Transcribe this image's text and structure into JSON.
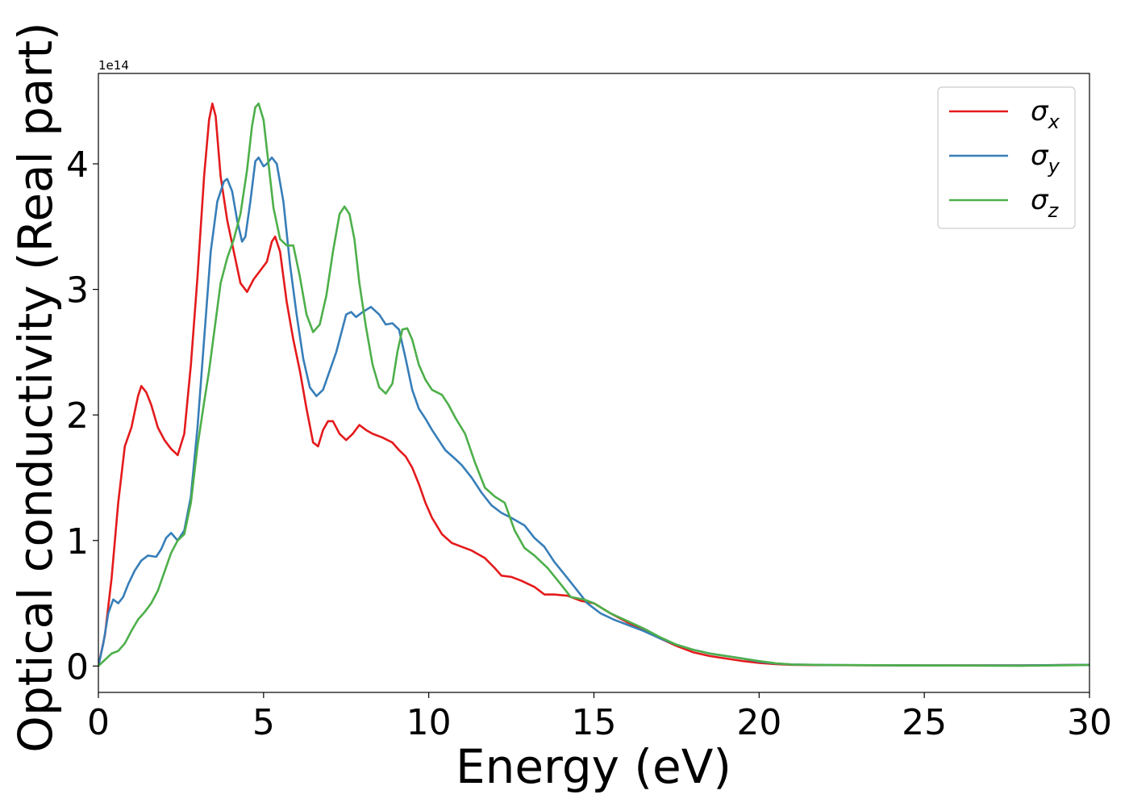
{
  "chart_data": {
    "type": "line",
    "xlabel": "Energy (eV)",
    "ylabel": "Optical conductivity (Real part)",
    "y_offset_label": "1e14",
    "xlim": [
      0,
      30
    ],
    "ylim": [
      -0.21,
      4.72
    ],
    "x_ticks": [
      0,
      5,
      10,
      15,
      20,
      25,
      30
    ],
    "x_tick_labels": [
      "0",
      "5",
      "10",
      "15",
      "20",
      "25",
      "30"
    ],
    "y_ticks": [
      0,
      1,
      2,
      3,
      4
    ],
    "y_tick_labels": [
      "0",
      "1",
      "2",
      "3",
      "4"
    ],
    "grid": false,
    "legend_position": "top-right",
    "series": [
      {
        "name": "σx",
        "symbol": "σ",
        "subscript": "x",
        "color": "#e41a1c",
        "points": [
          [
            0,
            0
          ],
          [
            0.2,
            0.25
          ],
          [
            0.4,
            0.7
          ],
          [
            0.6,
            1.3
          ],
          [
            0.8,
            1.75
          ],
          [
            1.0,
            1.9
          ],
          [
            1.2,
            2.15
          ],
          [
            1.3,
            2.23
          ],
          [
            1.45,
            2.18
          ],
          [
            1.6,
            2.08
          ],
          [
            1.8,
            1.9
          ],
          [
            2.0,
            1.8
          ],
          [
            2.2,
            1.73
          ],
          [
            2.4,
            1.68
          ],
          [
            2.6,
            1.85
          ],
          [
            2.8,
            2.4
          ],
          [
            3.0,
            3.1
          ],
          [
            3.2,
            3.9
          ],
          [
            3.35,
            4.35
          ],
          [
            3.45,
            4.48
          ],
          [
            3.55,
            4.38
          ],
          [
            3.7,
            3.9
          ],
          [
            3.9,
            3.55
          ],
          [
            4.1,
            3.3
          ],
          [
            4.3,
            3.05
          ],
          [
            4.5,
            2.98
          ],
          [
            4.7,
            3.08
          ],
          [
            4.9,
            3.15
          ],
          [
            5.1,
            3.22
          ],
          [
            5.25,
            3.38
          ],
          [
            5.35,
            3.42
          ],
          [
            5.5,
            3.3
          ],
          [
            5.7,
            2.9
          ],
          [
            5.9,
            2.6
          ],
          [
            6.1,
            2.35
          ],
          [
            6.3,
            2.05
          ],
          [
            6.5,
            1.78
          ],
          [
            6.65,
            1.75
          ],
          [
            6.8,
            1.88
          ],
          [
            6.95,
            1.95
          ],
          [
            7.1,
            1.95
          ],
          [
            7.3,
            1.85
          ],
          [
            7.5,
            1.8
          ],
          [
            7.7,
            1.85
          ],
          [
            7.9,
            1.92
          ],
          [
            8.1,
            1.88
          ],
          [
            8.3,
            1.85
          ],
          [
            8.6,
            1.82
          ],
          [
            8.9,
            1.78
          ],
          [
            9.1,
            1.72
          ],
          [
            9.3,
            1.67
          ],
          [
            9.5,
            1.58
          ],
          [
            9.7,
            1.45
          ],
          [
            9.9,
            1.3
          ],
          [
            10.1,
            1.18
          ],
          [
            10.4,
            1.05
          ],
          [
            10.7,
            0.98
          ],
          [
            11.0,
            0.95
          ],
          [
            11.3,
            0.92
          ],
          [
            11.7,
            0.86
          ],
          [
            12.0,
            0.78
          ],
          [
            12.2,
            0.72
          ],
          [
            12.5,
            0.71
          ],
          [
            12.8,
            0.68
          ],
          [
            13.2,
            0.63
          ],
          [
            13.5,
            0.57
          ],
          [
            13.8,
            0.57
          ],
          [
            14.2,
            0.56
          ],
          [
            14.6,
            0.52
          ],
          [
            15.0,
            0.5
          ],
          [
            15.5,
            0.42
          ],
          [
            16.0,
            0.35
          ],
          [
            16.5,
            0.29
          ],
          [
            17.0,
            0.22
          ],
          [
            17.5,
            0.16
          ],
          [
            18.0,
            0.11
          ],
          [
            18.5,
            0.08
          ],
          [
            19.0,
            0.06
          ],
          [
            19.5,
            0.04
          ],
          [
            20.0,
            0.025
          ],
          [
            20.5,
            0.015
          ],
          [
            21,
            0.01
          ],
          [
            22,
            0.007
          ],
          [
            25,
            0.005
          ],
          [
            28,
            0.005
          ],
          [
            30,
            0.01
          ]
        ]
      },
      {
        "name": "σy",
        "symbol": "σ",
        "subscript": "y",
        "color": "#377eb8",
        "points": [
          [
            0,
            0
          ],
          [
            0.15,
            0.18
          ],
          [
            0.3,
            0.42
          ],
          [
            0.45,
            0.53
          ],
          [
            0.6,
            0.5
          ],
          [
            0.75,
            0.55
          ],
          [
            0.9,
            0.65
          ],
          [
            1.1,
            0.76
          ],
          [
            1.3,
            0.84
          ],
          [
            1.5,
            0.88
          ],
          [
            1.75,
            0.87
          ],
          [
            1.9,
            0.93
          ],
          [
            2.05,
            1.02
          ],
          [
            2.2,
            1.06
          ],
          [
            2.4,
            1.0
          ],
          [
            2.6,
            1.08
          ],
          [
            2.8,
            1.35
          ],
          [
            3.0,
            1.9
          ],
          [
            3.2,
            2.6
          ],
          [
            3.4,
            3.3
          ],
          [
            3.6,
            3.7
          ],
          [
            3.8,
            3.86
          ],
          [
            3.9,
            3.88
          ],
          [
            4.05,
            3.78
          ],
          [
            4.2,
            3.55
          ],
          [
            4.35,
            3.38
          ],
          [
            4.45,
            3.42
          ],
          [
            4.6,
            3.7
          ],
          [
            4.75,
            4.02
          ],
          [
            4.85,
            4.05
          ],
          [
            5.0,
            3.98
          ],
          [
            5.1,
            4.0
          ],
          [
            5.25,
            4.05
          ],
          [
            5.4,
            4.0
          ],
          [
            5.6,
            3.7
          ],
          [
            5.8,
            3.2
          ],
          [
            6.0,
            2.8
          ],
          [
            6.2,
            2.45
          ],
          [
            6.4,
            2.22
          ],
          [
            6.6,
            2.15
          ],
          [
            6.8,
            2.2
          ],
          [
            7.0,
            2.35
          ],
          [
            7.2,
            2.5
          ],
          [
            7.35,
            2.65
          ],
          [
            7.5,
            2.8
          ],
          [
            7.65,
            2.82
          ],
          [
            7.8,
            2.78
          ],
          [
            8.0,
            2.82
          ],
          [
            8.25,
            2.86
          ],
          [
            8.5,
            2.8
          ],
          [
            8.7,
            2.72
          ],
          [
            8.9,
            2.73
          ],
          [
            9.1,
            2.68
          ],
          [
            9.3,
            2.45
          ],
          [
            9.5,
            2.2
          ],
          [
            9.7,
            2.05
          ],
          [
            9.9,
            1.97
          ],
          [
            10.1,
            1.88
          ],
          [
            10.3,
            1.8
          ],
          [
            10.5,
            1.72
          ],
          [
            10.8,
            1.65
          ],
          [
            11.0,
            1.6
          ],
          [
            11.3,
            1.5
          ],
          [
            11.6,
            1.38
          ],
          [
            11.9,
            1.28
          ],
          [
            12.2,
            1.22
          ],
          [
            12.5,
            1.18
          ],
          [
            12.9,
            1.12
          ],
          [
            13.2,
            1.02
          ],
          [
            13.5,
            0.95
          ],
          [
            13.8,
            0.83
          ],
          [
            14.2,
            0.7
          ],
          [
            14.5,
            0.6
          ],
          [
            14.8,
            0.5
          ],
          [
            15.2,
            0.42
          ],
          [
            15.6,
            0.37
          ],
          [
            16.0,
            0.33
          ],
          [
            16.5,
            0.28
          ],
          [
            17.0,
            0.22
          ],
          [
            17.5,
            0.17
          ],
          [
            18.0,
            0.13
          ],
          [
            18.5,
            0.1
          ],
          [
            19.0,
            0.08
          ],
          [
            19.5,
            0.06
          ],
          [
            20.0,
            0.035
          ],
          [
            20.5,
            0.02
          ],
          [
            21,
            0.012
          ],
          [
            22,
            0.008
          ],
          [
            25,
            0.005
          ],
          [
            28,
            0.005
          ],
          [
            30,
            0.01
          ]
        ]
      },
      {
        "name": "σz",
        "symbol": "σ",
        "subscript": "z",
        "color": "#4daf4a",
        "points": [
          [
            0,
            0
          ],
          [
            0.2,
            0.05
          ],
          [
            0.4,
            0.1
          ],
          [
            0.6,
            0.12
          ],
          [
            0.8,
            0.18
          ],
          [
            1.0,
            0.28
          ],
          [
            1.2,
            0.37
          ],
          [
            1.4,
            0.43
          ],
          [
            1.6,
            0.5
          ],
          [
            1.8,
            0.6
          ],
          [
            2.0,
            0.75
          ],
          [
            2.2,
            0.9
          ],
          [
            2.4,
            1.0
          ],
          [
            2.6,
            1.05
          ],
          [
            2.8,
            1.3
          ],
          [
            3.0,
            1.75
          ],
          [
            3.2,
            2.1
          ],
          [
            3.35,
            2.35
          ],
          [
            3.5,
            2.65
          ],
          [
            3.7,
            3.05
          ],
          [
            3.9,
            3.25
          ],
          [
            4.1,
            3.4
          ],
          [
            4.3,
            3.6
          ],
          [
            4.5,
            3.95
          ],
          [
            4.65,
            4.3
          ],
          [
            4.75,
            4.45
          ],
          [
            4.85,
            4.48
          ],
          [
            5.0,
            4.35
          ],
          [
            5.15,
            4.0
          ],
          [
            5.3,
            3.65
          ],
          [
            5.5,
            3.4
          ],
          [
            5.7,
            3.35
          ],
          [
            5.9,
            3.35
          ],
          [
            6.1,
            3.1
          ],
          [
            6.3,
            2.8
          ],
          [
            6.5,
            2.66
          ],
          [
            6.7,
            2.72
          ],
          [
            6.9,
            2.95
          ],
          [
            7.1,
            3.3
          ],
          [
            7.3,
            3.6
          ],
          [
            7.45,
            3.66
          ],
          [
            7.6,
            3.6
          ],
          [
            7.75,
            3.4
          ],
          [
            7.9,
            3.05
          ],
          [
            8.1,
            2.7
          ],
          [
            8.3,
            2.4
          ],
          [
            8.5,
            2.22
          ],
          [
            8.7,
            2.17
          ],
          [
            8.9,
            2.25
          ],
          [
            9.05,
            2.5
          ],
          [
            9.2,
            2.68
          ],
          [
            9.35,
            2.69
          ],
          [
            9.5,
            2.6
          ],
          [
            9.7,
            2.4
          ],
          [
            9.9,
            2.28
          ],
          [
            10.1,
            2.2
          ],
          [
            10.4,
            2.16
          ],
          [
            10.6,
            2.08
          ],
          [
            10.8,
            1.98
          ],
          [
            11.1,
            1.85
          ],
          [
            11.4,
            1.62
          ],
          [
            11.7,
            1.42
          ],
          [
            12.0,
            1.35
          ],
          [
            12.3,
            1.3
          ],
          [
            12.6,
            1.08
          ],
          [
            12.9,
            0.94
          ],
          [
            13.2,
            0.88
          ],
          [
            13.6,
            0.78
          ],
          [
            14.0,
            0.65
          ],
          [
            14.3,
            0.55
          ],
          [
            14.7,
            0.53
          ],
          [
            15.0,
            0.5
          ],
          [
            15.5,
            0.42
          ],
          [
            16.0,
            0.36
          ],
          [
            16.5,
            0.3
          ],
          [
            17.0,
            0.23
          ],
          [
            17.5,
            0.17
          ],
          [
            18.0,
            0.13
          ],
          [
            18.5,
            0.1
          ],
          [
            19.0,
            0.08
          ],
          [
            19.5,
            0.06
          ],
          [
            20.0,
            0.04
          ],
          [
            20.5,
            0.022
          ],
          [
            21,
            0.012
          ],
          [
            22,
            0.008
          ],
          [
            25,
            0.005
          ],
          [
            28,
            0.002
          ],
          [
            30,
            0.008
          ]
        ]
      }
    ]
  }
}
